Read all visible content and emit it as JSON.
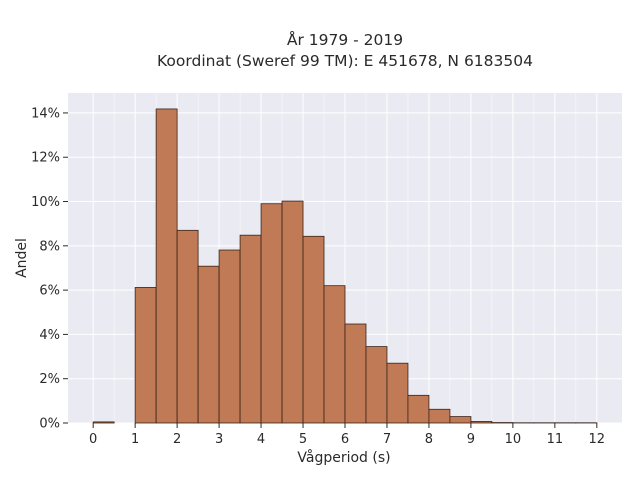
{
  "chart_data": {
    "type": "bar",
    "title_line1": "År 1979 - 2019",
    "title_line2": "Koordinat (Sweref 99 TM): E 451678, N 6183504",
    "xlabel": "Vågperiod (s)",
    "ylabel": "Andel",
    "xlim": [
      -0.6,
      12.6
    ],
    "ylim": [
      0,
      0.149
    ],
    "x_ticks": [
      0,
      1,
      2,
      3,
      4,
      5,
      6,
      7,
      8,
      9,
      10,
      11,
      12
    ],
    "x_tick_labels": [
      "0",
      "1",
      "2",
      "3",
      "4",
      "5",
      "6",
      "7",
      "8",
      "9",
      "10",
      "11",
      "12"
    ],
    "y_ticks": [
      0,
      0.02,
      0.04,
      0.06,
      0.08,
      0.1,
      0.12,
      0.14
    ],
    "y_tick_labels": [
      "0%",
      "2%",
      "4%",
      "6%",
      "8%",
      "10%",
      "12%",
      "14%"
    ],
    "bin_width": 0.5,
    "bins": [
      {
        "x0": 0.0,
        "value": 0.0005
      },
      {
        "x0": 0.5,
        "value": 0.0
      },
      {
        "x0": 1.0,
        "value": 0.0612
      },
      {
        "x0": 1.5,
        "value": 0.1418
      },
      {
        "x0": 2.0,
        "value": 0.087
      },
      {
        "x0": 2.5,
        "value": 0.0708
      },
      {
        "x0": 3.0,
        "value": 0.0781
      },
      {
        "x0": 3.5,
        "value": 0.0848
      },
      {
        "x0": 4.0,
        "value": 0.099
      },
      {
        "x0": 4.5,
        "value": 0.1002
      },
      {
        "x0": 5.0,
        "value": 0.0843
      },
      {
        "x0": 5.5,
        "value": 0.062
      },
      {
        "x0": 6.0,
        "value": 0.0447
      },
      {
        "x0": 6.5,
        "value": 0.0345
      },
      {
        "x0": 7.0,
        "value": 0.027
      },
      {
        "x0": 7.5,
        "value": 0.0125
      },
      {
        "x0": 8.0,
        "value": 0.0062
      },
      {
        "x0": 8.5,
        "value": 0.0029
      },
      {
        "x0": 9.0,
        "value": 0.0007
      },
      {
        "x0": 9.5,
        "value": 0.0002
      },
      {
        "x0": 10.0,
        "value": 0.0001
      },
      {
        "x0": 10.5,
        "value": 0.0001
      },
      {
        "x0": 11.0,
        "value": 0.0001
      },
      {
        "x0": 11.5,
        "value": 0.0001
      }
    ],
    "grid": true,
    "colors": {
      "bar_fill": "#c07a55",
      "bar_edge": "#3a2418",
      "plot_bg": "#eaeaf2",
      "grid": "#ffffff"
    }
  }
}
